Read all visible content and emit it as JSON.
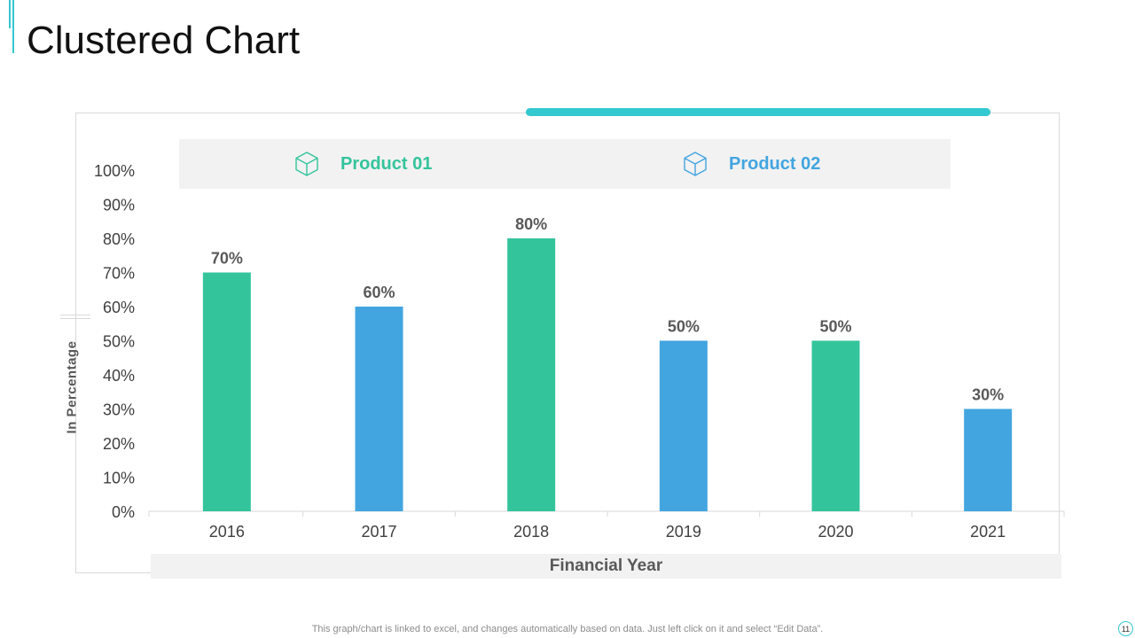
{
  "slide": {
    "title": "Clustered Chart",
    "footnote": "This graph/chart is linked to excel, and changes automatically based on data. Just left click on it and select “Edit Data”.",
    "page_number": "11",
    "accent_color": "#34c8d0"
  },
  "legend": [
    {
      "label": "Product 01",
      "color": "#34c49c",
      "icon": "box-icon"
    },
    {
      "label": "Product 02",
      "color": "#42a5e0",
      "icon": "box-icon"
    }
  ],
  "chart_data": {
    "type": "bar",
    "title": "Clustered Chart",
    "xlabel": "Financial Year",
    "ylabel": "In Percentage",
    "ylim": [
      0,
      100
    ],
    "y_ticks": [
      0,
      10,
      20,
      30,
      40,
      50,
      60,
      70,
      80,
      90,
      100
    ],
    "y_tick_suffix": "%",
    "categories": [
      "2016",
      "2017",
      "2018",
      "2019",
      "2020",
      "2021"
    ],
    "series": [
      {
        "name": "Product 01",
        "color": "#34c49c",
        "values": [
          70,
          null,
          80,
          null,
          50,
          null
        ]
      },
      {
        "name": "Product 02",
        "color": "#42a5e0",
        "values": [
          null,
          60,
          null,
          50,
          null,
          30
        ]
      }
    ],
    "data_labels": [
      "70%",
      "60%",
      "80%",
      "50%",
      "50%",
      "30%"
    ],
    "grid": false,
    "legend_position": "top"
  }
}
